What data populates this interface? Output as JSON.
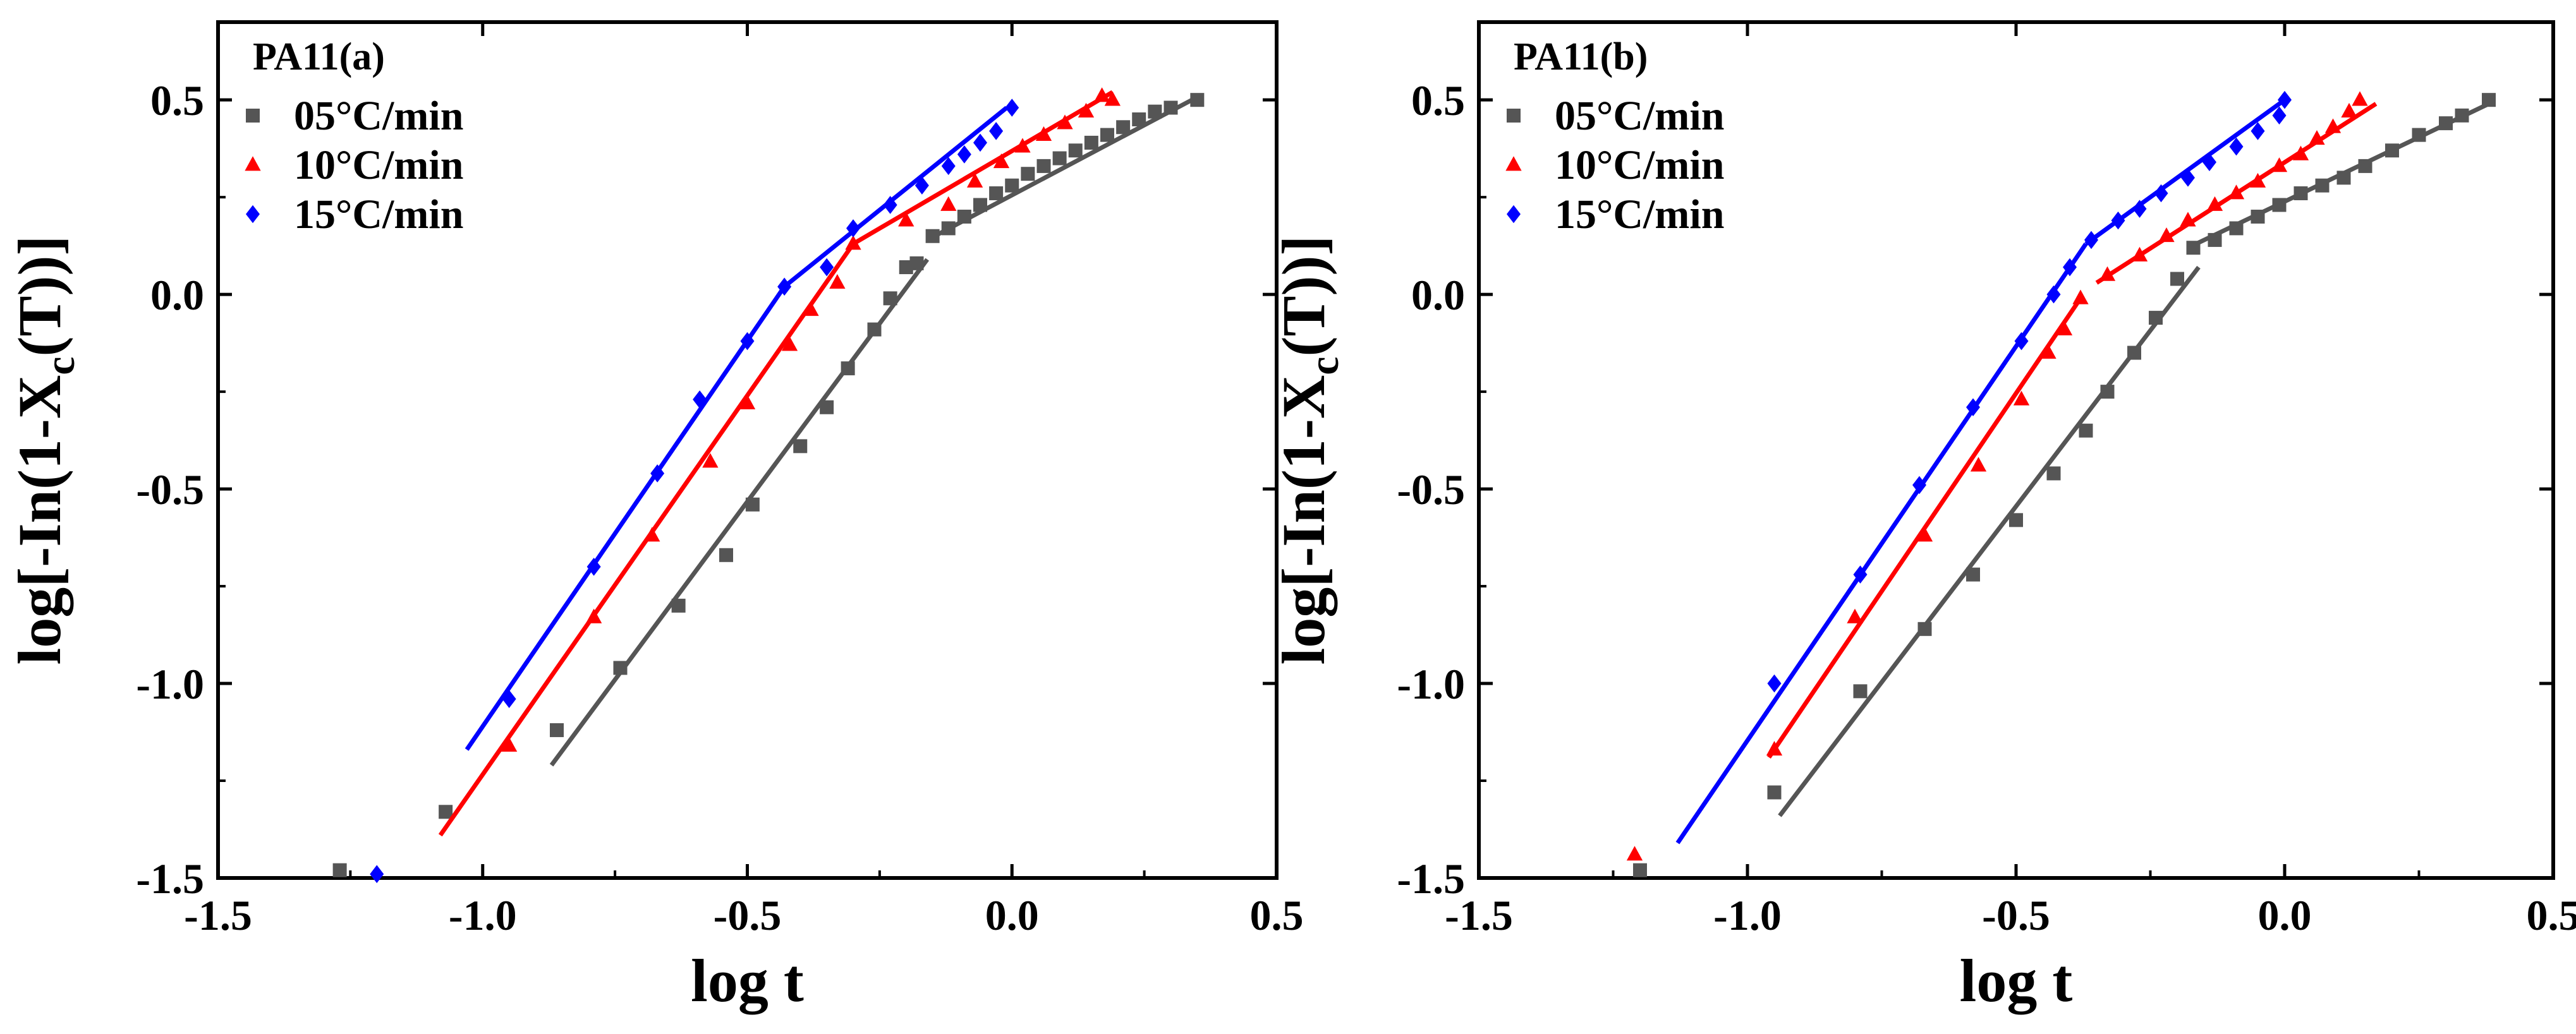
{
  "chart_data": [
    {
      "type": "scatter",
      "title": "PA11(a)",
      "xlabel": "log t",
      "ylabel_parts": [
        "log[-In(1-X",
        "c",
        "(T))]"
      ],
      "xlim": [
        -1.5,
        0.5
      ],
      "ylim": [
        -1.5,
        0.7
      ],
      "xticks": [
        -1.5,
        -1.0,
        -0.5,
        0.0,
        0.5
      ],
      "yticks": [
        -1.5,
        -1.0,
        -0.5,
        0.0,
        0.5
      ],
      "xtick_labels": [
        "-1.5",
        "-1.0",
        "-0.5",
        "0.0",
        "0.5"
      ],
      "ytick_labels": [
        "-1.5",
        "-1.0",
        "-0.5",
        "0.0",
        "0.5"
      ],
      "legend_position": "top-left",
      "series": [
        {
          "name": "05°C/min",
          "color": "#555555",
          "marker": "square",
          "points": [
            [
              -1.27,
              -1.48
            ],
            [
              -1.07,
              -1.33
            ],
            [
              -0.86,
              -1.12
            ],
            [
              -0.74,
              -0.96
            ],
            [
              -0.63,
              -0.8
            ],
            [
              -0.54,
              -0.67
            ],
            [
              -0.49,
              -0.54
            ],
            [
              -0.4,
              -0.39
            ],
            [
              -0.35,
              -0.29
            ],
            [
              -0.31,
              -0.19
            ],
            [
              -0.26,
              -0.09
            ],
            [
              -0.23,
              -0.01
            ],
            [
              -0.2,
              0.07
            ],
            [
              -0.18,
              0.08
            ],
            [
              -0.15,
              0.15
            ],
            [
              -0.12,
              0.17
            ],
            [
              -0.09,
              0.2
            ],
            [
              -0.06,
              0.23
            ],
            [
              -0.03,
              0.26
            ],
            [
              0.0,
              0.28
            ],
            [
              0.03,
              0.31
            ],
            [
              0.06,
              0.33
            ],
            [
              0.09,
              0.35
            ],
            [
              0.12,
              0.37
            ],
            [
              0.15,
              0.39
            ],
            [
              0.18,
              0.41
            ],
            [
              0.21,
              0.43
            ],
            [
              0.24,
              0.45
            ],
            [
              0.27,
              0.47
            ],
            [
              0.3,
              0.48
            ],
            [
              0.35,
              0.5
            ]
          ],
          "fits": [
            [
              [
                -0.87,
                -1.21
              ],
              [
                -0.16,
                0.09
              ]
            ],
            [
              [
                -0.16,
                0.14
              ],
              [
                0.34,
                0.5
              ]
            ]
          ]
        },
        {
          "name": "10°C/min",
          "color": "#ff0000",
          "marker": "triangle",
          "points": [
            [
              -0.95,
              -1.16
            ],
            [
              -0.79,
              -0.83
            ],
            [
              -0.68,
              -0.62
            ],
            [
              -0.57,
              -0.43
            ],
            [
              -0.5,
              -0.28
            ],
            [
              -0.42,
              -0.13
            ],
            [
              -0.38,
              -0.04
            ],
            [
              -0.33,
              0.03
            ],
            [
              -0.3,
              0.13
            ],
            [
              -0.2,
              0.19
            ],
            [
              -0.12,
              0.23
            ],
            [
              -0.07,
              0.29
            ],
            [
              -0.02,
              0.34
            ],
            [
              0.02,
              0.38
            ],
            [
              0.06,
              0.41
            ],
            [
              0.1,
              0.44
            ],
            [
              0.14,
              0.47
            ],
            [
              0.17,
              0.51
            ],
            [
              0.19,
              0.5
            ]
          ],
          "fits": [
            [
              [
                -1.08,
                -1.39
              ],
              [
                -0.3,
                0.13
              ]
            ],
            [
              [
                -0.3,
                0.13
              ],
              [
                0.19,
                0.52
              ]
            ]
          ]
        },
        {
          "name": "15°C/min",
          "color": "#0000ff",
          "marker": "diamond",
          "points": [
            [
              -1.2,
              -1.49
            ],
            [
              -0.95,
              -1.04
            ],
            [
              -0.79,
              -0.7
            ],
            [
              -0.67,
              -0.46
            ],
            [
              -0.59,
              -0.27
            ],
            [
              -0.5,
              -0.12
            ],
            [
              -0.43,
              0.02
            ],
            [
              -0.35,
              0.07
            ],
            [
              -0.3,
              0.17
            ],
            [
              -0.23,
              0.23
            ],
            [
              -0.17,
              0.28
            ],
            [
              -0.12,
              0.33
            ],
            [
              -0.09,
              0.36
            ],
            [
              -0.06,
              0.39
            ],
            [
              -0.03,
              0.42
            ],
            [
              0.0,
              0.48
            ]
          ],
          "fits": [
            [
              [
                -1.03,
                -1.17
              ],
              [
                -0.43,
                0.02
              ]
            ],
            [
              [
                -0.43,
                0.02
              ],
              [
                -0.01,
                0.48
              ]
            ]
          ]
        }
      ]
    },
    {
      "type": "scatter",
      "title": "PA11(b)",
      "xlabel": "log t",
      "ylabel_parts": [
        "log[-In(1-X",
        "c",
        "(T))]"
      ],
      "xlim": [
        -1.5,
        0.5
      ],
      "ylim": [
        -1.5,
        0.7
      ],
      "xticks": [
        -1.5,
        -1.0,
        -0.5,
        0.0,
        0.5
      ],
      "yticks": [
        -1.5,
        -1.0,
        -0.5,
        0.0,
        0.5
      ],
      "xtick_labels": [
        "-1.5",
        "-1.0",
        "-0.5",
        "0.0",
        "0.5"
      ],
      "ytick_labels": [
        "-1.5",
        "-1.0",
        "-0.5",
        "0.0",
        "0.5"
      ],
      "legend_position": "top-left",
      "series": [
        {
          "name": "05°C/min",
          "color": "#555555",
          "marker": "square",
          "points": [
            [
              -1.2,
              -1.48
            ],
            [
              -0.95,
              -1.28
            ],
            [
              -0.79,
              -1.02
            ],
            [
              -0.67,
              -0.86
            ],
            [
              -0.58,
              -0.72
            ],
            [
              -0.5,
              -0.58
            ],
            [
              -0.43,
              -0.46
            ],
            [
              -0.37,
              -0.35
            ],
            [
              -0.33,
              -0.25
            ],
            [
              -0.28,
              -0.15
            ],
            [
              -0.24,
              -0.06
            ],
            [
              -0.2,
              0.04
            ],
            [
              -0.17,
              0.12
            ],
            [
              -0.13,
              0.14
            ],
            [
              -0.09,
              0.17
            ],
            [
              -0.05,
              0.2
            ],
            [
              -0.01,
              0.23
            ],
            [
              0.03,
              0.26
            ],
            [
              0.07,
              0.28
            ],
            [
              0.11,
              0.3
            ],
            [
              0.15,
              0.33
            ],
            [
              0.2,
              0.37
            ],
            [
              0.25,
              0.41
            ],
            [
              0.3,
              0.44
            ],
            [
              0.33,
              0.46
            ],
            [
              0.38,
              0.5
            ]
          ],
          "fits": [
            [
              [
                -0.94,
                -1.34
              ],
              [
                -0.16,
                0.07
              ]
            ],
            [
              [
                -0.18,
                0.12
              ],
              [
                0.38,
                0.49
              ]
            ]
          ]
        },
        {
          "name": "10°C/min",
          "color": "#ff0000",
          "marker": "triangle",
          "points": [
            [
              -1.21,
              -1.44
            ],
            [
              -0.95,
              -1.17
            ],
            [
              -0.8,
              -0.83
            ],
            [
              -0.67,
              -0.62
            ],
            [
              -0.57,
              -0.44
            ],
            [
              -0.49,
              -0.27
            ],
            [
              -0.44,
              -0.15
            ],
            [
              -0.41,
              -0.09
            ],
            [
              -0.38,
              -0.01
            ],
            [
              -0.33,
              0.05
            ],
            [
              -0.27,
              0.1
            ],
            [
              -0.22,
              0.15
            ],
            [
              -0.18,
              0.19
            ],
            [
              -0.13,
              0.23
            ],
            [
              -0.09,
              0.26
            ],
            [
              -0.05,
              0.29
            ],
            [
              -0.01,
              0.33
            ],
            [
              0.03,
              0.36
            ],
            [
              0.06,
              0.4
            ],
            [
              0.09,
              0.43
            ],
            [
              0.12,
              0.47
            ],
            [
              0.14,
              0.5
            ]
          ],
          "fits": [
            [
              [
                -0.96,
                -1.19
              ],
              [
                -0.38,
                -0.01
              ]
            ],
            [
              [
                -0.35,
                0.03
              ],
              [
                0.17,
                0.49
              ]
            ]
          ]
        },
        {
          "name": "15°C/min",
          "color": "#0000ff",
          "marker": "diamond",
          "points": [
            [
              -0.95,
              -1.0
            ],
            [
              -0.79,
              -0.72
            ],
            [
              -0.68,
              -0.49
            ],
            [
              -0.58,
              -0.29
            ],
            [
              -0.49,
              -0.12
            ],
            [
              -0.43,
              0.0
            ],
            [
              -0.4,
              0.07
            ],
            [
              -0.36,
              0.14
            ],
            [
              -0.31,
              0.19
            ],
            [
              -0.27,
              0.22
            ],
            [
              -0.23,
              0.26
            ],
            [
              -0.18,
              0.3
            ],
            [
              -0.14,
              0.34
            ],
            [
              -0.09,
              0.38
            ],
            [
              -0.05,
              0.42
            ],
            [
              -0.01,
              0.46
            ],
            [
              0.0,
              0.5
            ]
          ],
          "fits": [
            [
              [
                -1.13,
                -1.41
              ],
              [
                -0.37,
                0.13
              ]
            ],
            [
              [
                -0.37,
                0.13
              ],
              [
                0.0,
                0.5
              ]
            ]
          ]
        }
      ]
    }
  ]
}
